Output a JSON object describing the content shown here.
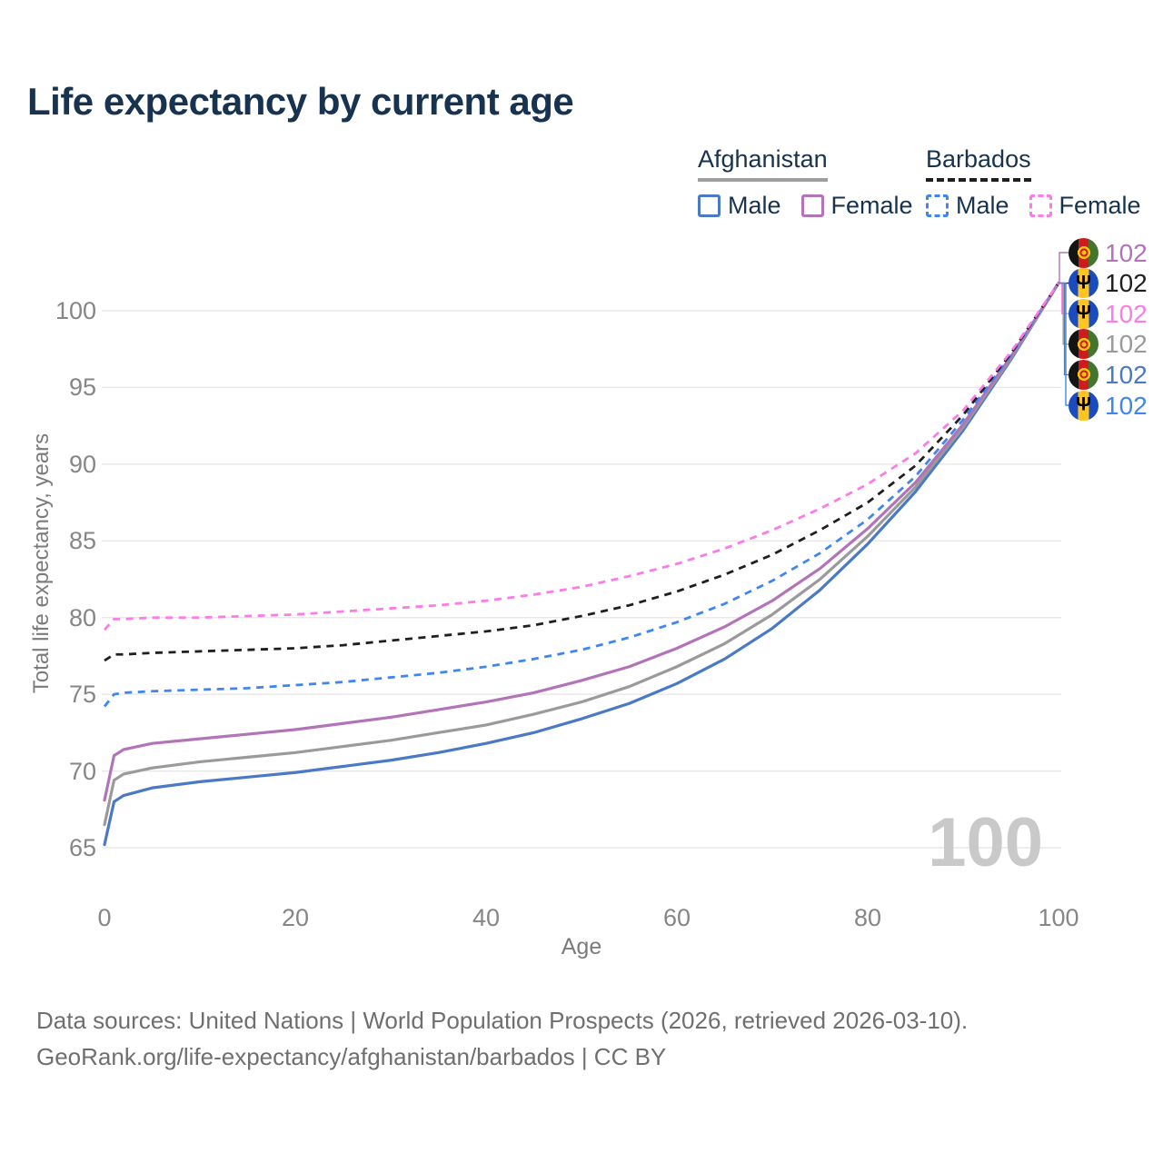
{
  "title": "Life expectancy by current age",
  "watermark_age": "100",
  "legend": {
    "groups": [
      {
        "name": "Afghanistan",
        "underline_color": "#9e9e9e",
        "underline_style": "solid",
        "items": [
          {
            "label": "Male",
            "color": "#4a79c5",
            "dash": "solid"
          },
          {
            "label": "Female",
            "color": "#b273b8",
            "dash": "solid"
          }
        ]
      },
      {
        "name": "Barbados",
        "underline_color": "#1f1f1f",
        "underline_style": "dashed",
        "items": [
          {
            "label": "Male",
            "color": "#3f86f0",
            "dash": "dashed"
          },
          {
            "label": "Female",
            "color": "#fc7be6",
            "dash": "dashed"
          }
        ]
      }
    ]
  },
  "chart_data": {
    "type": "line",
    "title": "Life expectancy by current age",
    "xlabel": "Age",
    "ylabel": "Total life expectancy, years",
    "xlim": [
      0,
      100
    ],
    "ylim": [
      63,
      103
    ],
    "xticks": [
      0,
      20,
      40,
      60,
      80,
      100
    ],
    "yticks": [
      65,
      70,
      75,
      80,
      85,
      90,
      95,
      100
    ],
    "grid": "horizontal-only",
    "legend_position": "top-right",
    "x": [
      0,
      1,
      2,
      5,
      10,
      15,
      20,
      25,
      30,
      35,
      40,
      45,
      50,
      55,
      60,
      65,
      70,
      75,
      80,
      85,
      90,
      95,
      100
    ],
    "series": [
      {
        "name": "Afghanistan Male",
        "country": "Afghanistan",
        "sex": "Male",
        "color": "#4a79c5",
        "dash": "solid",
        "values": [
          65.2,
          68.0,
          68.4,
          68.9,
          69.3,
          69.6,
          69.9,
          70.3,
          70.7,
          71.2,
          71.8,
          72.5,
          73.4,
          74.4,
          75.7,
          77.3,
          79.3,
          81.8,
          84.8,
          88.2,
          92.2,
          96.8,
          101.8
        ]
      },
      {
        "name": "Afghanistan Both sexes",
        "country": "Afghanistan",
        "sex": "Both sexes",
        "color": "#9a9a9a",
        "dash": "solid",
        "values": [
          66.5,
          69.4,
          69.8,
          70.2,
          70.6,
          70.9,
          71.2,
          71.6,
          72.0,
          72.5,
          73.0,
          73.7,
          74.5,
          75.5,
          76.8,
          78.3,
          80.2,
          82.5,
          85.3,
          88.5,
          92.4,
          96.9,
          101.8
        ]
      },
      {
        "name": "Afghanistan Female",
        "country": "Afghanistan",
        "sex": "Female",
        "color": "#b273b8",
        "dash": "solid",
        "values": [
          68.1,
          71.0,
          71.4,
          71.8,
          72.1,
          72.4,
          72.7,
          73.1,
          73.5,
          74.0,
          74.5,
          75.1,
          75.9,
          76.8,
          78.0,
          79.4,
          81.1,
          83.2,
          85.8,
          88.8,
          92.6,
          97.0,
          101.8
        ]
      },
      {
        "name": "Barbados Male",
        "country": "Barbados",
        "sex": "Male",
        "color": "#3f86f0",
        "dash": "dashed",
        "values": [
          74.2,
          75.0,
          75.1,
          75.2,
          75.3,
          75.4,
          75.6,
          75.8,
          76.1,
          76.4,
          76.8,
          77.3,
          77.9,
          78.7,
          79.7,
          80.9,
          82.4,
          84.2,
          86.4,
          89.2,
          92.9,
          97.1,
          101.8
        ]
      },
      {
        "name": "Barbados Both sexes",
        "country": "Barbados",
        "sex": "Both sexes",
        "color": "#1f1f1f",
        "dash": "dashed",
        "values": [
          77.2,
          77.6,
          77.6,
          77.7,
          77.8,
          77.9,
          78.0,
          78.2,
          78.5,
          78.8,
          79.1,
          79.5,
          80.1,
          80.8,
          81.7,
          82.8,
          84.1,
          85.7,
          87.5,
          89.9,
          93.2,
          97.2,
          101.8
        ]
      },
      {
        "name": "Barbados Female",
        "country": "Barbados",
        "sex": "Female",
        "color": "#fc7be6",
        "dash": "dashed",
        "values": [
          79.2,
          79.9,
          79.9,
          80.0,
          80.0,
          80.1,
          80.2,
          80.4,
          80.6,
          80.8,
          81.1,
          81.5,
          82.0,
          82.7,
          83.5,
          84.5,
          85.7,
          87.1,
          88.7,
          90.7,
          93.5,
          97.3,
          101.8
        ]
      }
    ],
    "end_labels": [
      {
        "series": "Afghanistan Female",
        "flag": "afghanistan",
        "value": "102",
        "color": "#b273b8"
      },
      {
        "series": "Barbados Both sexes",
        "flag": "barbados",
        "value": "102",
        "color": "#1f1f1f"
      },
      {
        "series": "Barbados Female",
        "flag": "barbados",
        "value": "102",
        "color": "#fc7be6"
      },
      {
        "series": "Afghanistan Both sexes",
        "flag": "afghanistan",
        "value": "102",
        "color": "#9a9a9a"
      },
      {
        "series": "Afghanistan Male",
        "flag": "afghanistan",
        "value": "102",
        "color": "#4a79c5"
      },
      {
        "series": "Barbados Male",
        "flag": "barbados",
        "value": "102",
        "color": "#3f86f0"
      }
    ]
  },
  "icons": {
    "barbados_trident": "Ψ",
    "afghanistan_emblem": "roundel"
  },
  "footer": {
    "line1": "Data sources: United Nations | World Population Prospects (2026, retrieved 2026-03-10).",
    "line2": "GeoRank.org/life-expectancy/afghanistan/barbados | CC BY"
  }
}
